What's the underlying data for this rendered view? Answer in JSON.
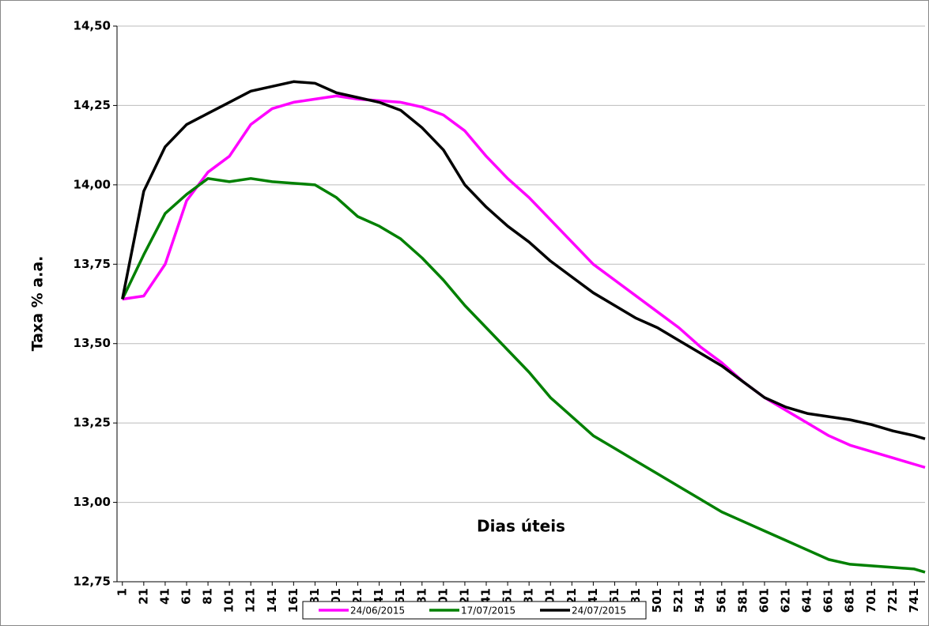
{
  "chart_data": {
    "type": "line",
    "xlabel": "Dias úteis",
    "ylabel": "Taxa % a.a.",
    "x": [
      1,
      21,
      41,
      61,
      81,
      101,
      121,
      141,
      161,
      181,
      201,
      221,
      241,
      261,
      281,
      301,
      321,
      341,
      361,
      381,
      401,
      421,
      441,
      461,
      481,
      501,
      521,
      541,
      561,
      581,
      601,
      621,
      641,
      661,
      681,
      701,
      721,
      741,
      751
    ],
    "series": [
      {
        "name": "24/06/2015",
        "color": "#ff00ff",
        "values": [
          13.64,
          13.65,
          13.75,
          13.95,
          14.04,
          14.09,
          14.19,
          14.24,
          14.26,
          14.27,
          14.28,
          14.27,
          14.265,
          14.26,
          14.245,
          14.22,
          14.17,
          14.09,
          14.02,
          13.96,
          13.89,
          13.82,
          13.75,
          13.7,
          13.65,
          13.6,
          13.55,
          13.49,
          13.44,
          13.38,
          13.33,
          13.29,
          13.25,
          13.21,
          13.18,
          13.16,
          13.14,
          13.12,
          13.11
        ]
      },
      {
        "name": "17/07/2015",
        "color": "#008000",
        "values": [
          13.64,
          13.78,
          13.91,
          13.97,
          14.02,
          14.01,
          14.02,
          14.01,
          14.005,
          14.0,
          13.96,
          13.9,
          13.87,
          13.83,
          13.77,
          13.7,
          13.62,
          13.55,
          13.48,
          13.41,
          13.33,
          13.27,
          13.21,
          13.17,
          13.13,
          13.09,
          13.05,
          13.01,
          12.97,
          12.94,
          12.91,
          12.88,
          12.85,
          12.82,
          12.805,
          12.8,
          12.795,
          12.79,
          12.78
        ]
      },
      {
        "name": "24/07/2015",
        "color": "#000000",
        "values": [
          13.64,
          13.98,
          14.12,
          14.19,
          14.225,
          14.26,
          14.295,
          14.31,
          14.325,
          14.32,
          14.29,
          14.275,
          14.26,
          14.235,
          14.18,
          14.11,
          14.0,
          13.93,
          13.87,
          13.82,
          13.76,
          13.71,
          13.66,
          13.62,
          13.58,
          13.55,
          13.51,
          13.47,
          13.43,
          13.38,
          13.33,
          13.3,
          13.28,
          13.27,
          13.26,
          13.245,
          13.225,
          13.21,
          13.2
        ]
      }
    ],
    "xlim": [
      -4,
      751
    ],
    "xticks": [
      1,
      21,
      41,
      61,
      81,
      101,
      121,
      141,
      161,
      181,
      201,
      221,
      241,
      261,
      281,
      301,
      321,
      341,
      361,
      381,
      401,
      421,
      441,
      461,
      481,
      501,
      521,
      541,
      561,
      581,
      601,
      621,
      641,
      661,
      681,
      701,
      721,
      741
    ],
    "ylim": [
      12.75,
      14.5
    ],
    "yticks": [
      {
        "value": 12.75,
        "label": "12,75"
      },
      {
        "value": 13.0,
        "label": "13,00"
      },
      {
        "value": 13.25,
        "label": "13,25"
      },
      {
        "value": 13.5,
        "label": "13,50"
      },
      {
        "value": 13.75,
        "label": "13,75"
      },
      {
        "value": 14.0,
        "label": "14,00"
      },
      {
        "value": 14.25,
        "label": "14,25"
      },
      {
        "value": 14.5,
        "label": "14,50"
      }
    ],
    "grid": true,
    "legend": "bottom"
  }
}
